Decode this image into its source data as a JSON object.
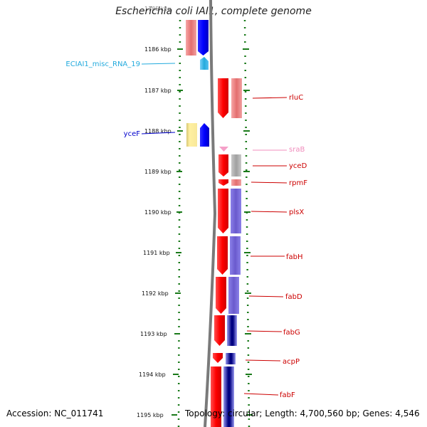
{
  "title": "Escherichia coli IAI1, complete genome",
  "footer": {
    "accession": "Accession: NC_011741",
    "stats": "Topology: circular; Length: 4,700,560 bp; Genes: 4,546"
  },
  "ruler": {
    "ticks": [
      {
        "label": "1185 kbp",
        "faded": true
      },
      {
        "label": "1186 kbp"
      },
      {
        "label": "1187 kbp"
      },
      {
        "label": "1188 kbp"
      },
      {
        "label": "1189 kbp"
      },
      {
        "label": "1190 kbp"
      },
      {
        "label": "1191 kbp"
      },
      {
        "label": "1192 kbp"
      },
      {
        "label": "1193 kbp"
      },
      {
        "label": "1194 kbp"
      },
      {
        "label": "1195 kbp"
      }
    ]
  },
  "colors": {
    "gene_red": "#ff0000",
    "gene_blue": "#0000ff",
    "rna_cyan": "#22aadd",
    "srna_pink": "#f5a0c8",
    "label_red": "#cc0000",
    "label_blue": "#0000cc",
    "label_cyan": "#22aadd",
    "label_pink": "#f08cbc",
    "ruler_green": "#1a7a1a",
    "backbone": "#808080"
  },
  "labels": {
    "left": [
      {
        "text": "ECIAI1_misc_RNA_19",
        "color": "#22aadd"
      },
      {
        "text": "yceF",
        "color": "#0000cc"
      }
    ],
    "right": [
      {
        "text": "rluC",
        "color": "#cc0000"
      },
      {
        "text": "sraB",
        "color": "#f08cbc"
      },
      {
        "text": "yceD",
        "color": "#cc0000"
      },
      {
        "text": "rpmF",
        "color": "#cc0000"
      },
      {
        "text": "plsX",
        "color": "#cc0000"
      },
      {
        "text": "fabH",
        "color": "#cc0000"
      },
      {
        "text": "fabD",
        "color": "#cc0000"
      },
      {
        "text": "fabG",
        "color": "#cc0000"
      },
      {
        "text": "acpP",
        "color": "#cc0000"
      },
      {
        "text": "fabF",
        "color": "#cc0000"
      }
    ]
  }
}
